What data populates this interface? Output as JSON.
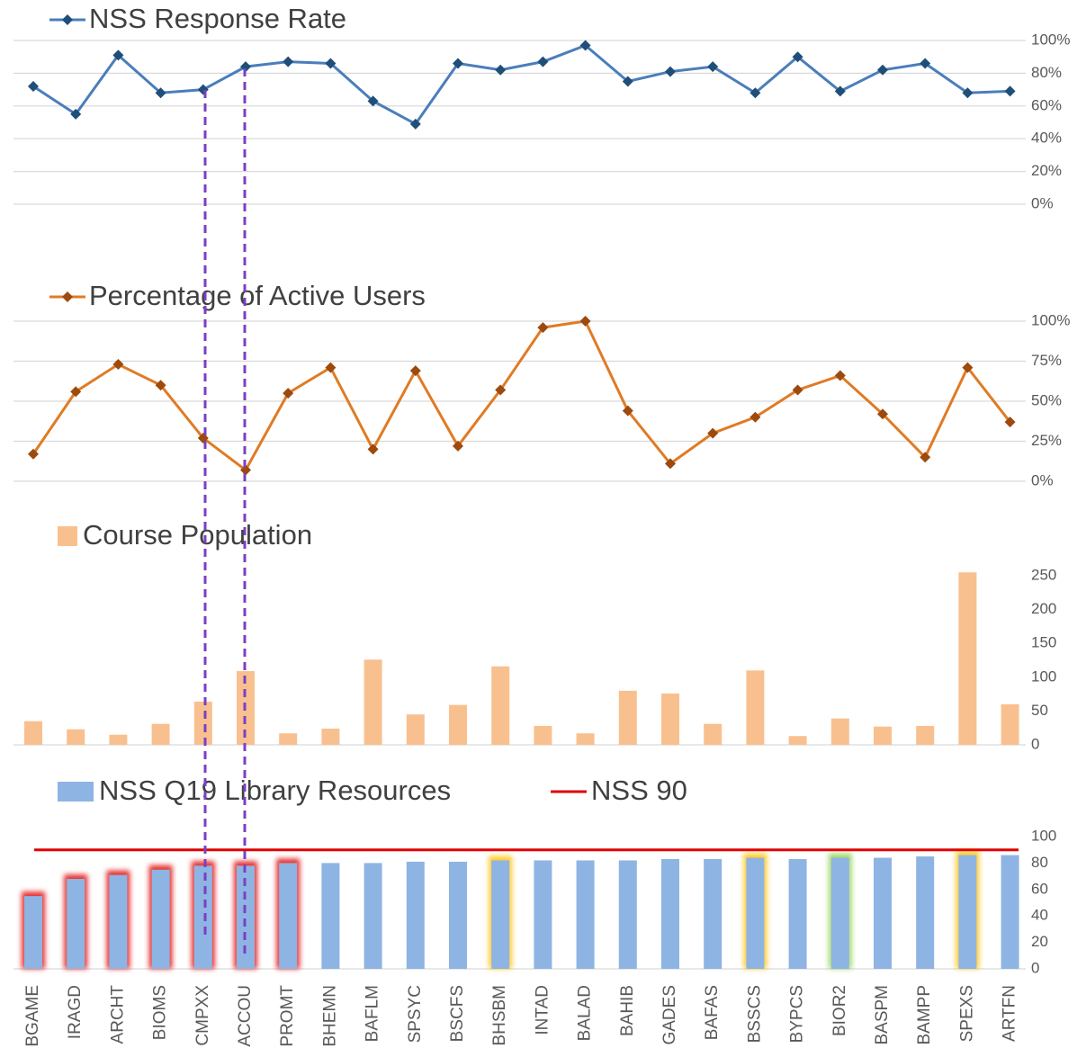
{
  "chart_data": [
    {
      "type": "line",
      "series": [
        {
          "name": "NSS Response Rate",
          "color": "#4a7ebb",
          "marker_color": "#1f4e79",
          "values": [
            72,
            55,
            91,
            68,
            70,
            84,
            87,
            86,
            63,
            49,
            86,
            82,
            87,
            97,
            75,
            81,
            84,
            68,
            90,
            69,
            82,
            86,
            68,
            69
          ]
        }
      ],
      "ylim": [
        0,
        100
      ],
      "yticks": [
        {
          "value": 0,
          "label": "0%"
        },
        {
          "value": 20,
          "label": "20%"
        },
        {
          "value": 40,
          "label": "40%"
        },
        {
          "value": 60,
          "label": "60%"
        },
        {
          "value": 80,
          "label": "80%"
        },
        {
          "value": 100,
          "label": "100%"
        }
      ],
      "grid": true
    },
    {
      "type": "line",
      "series": [
        {
          "name": "Percentage of Active Users",
          "color": "#e07b24",
          "marker_color": "#9c4a0e",
          "values": [
            17,
            56,
            73,
            60,
            27,
            7,
            55,
            71,
            20,
            69,
            22,
            57,
            96,
            100,
            44,
            11,
            30,
            40,
            57,
            66,
            42,
            15,
            71,
            37
          ]
        }
      ],
      "ylim": [
        0,
        100
      ],
      "yticks": [
        {
          "value": 0,
          "label": "0%"
        },
        {
          "value": 25,
          "label": "25%"
        },
        {
          "value": 50,
          "label": "50%"
        },
        {
          "value": 75,
          "label": "75%"
        },
        {
          "value": 100,
          "label": "100%"
        }
      ],
      "grid": true
    },
    {
      "type": "bar",
      "series": [
        {
          "name": "Course Population",
          "color": "#f9c08f",
          "values": [
            35,
            23,
            15,
            31,
            64,
            109,
            17,
            24,
            126,
            45,
            59,
            116,
            28,
            17,
            80,
            76,
            31,
            110,
            13,
            39,
            27,
            28,
            255,
            60
          ]
        }
      ],
      "ylim": [
        0,
        260
      ],
      "yticks": [
        0,
        50,
        100,
        150,
        200,
        250
      ],
      "grid": false
    },
    {
      "type": "bar",
      "categories": [
        "BGAME",
        "IRAGD",
        "ARCHT",
        "BIOMS",
        "CMPXX",
        "ACCOU",
        "PROMT",
        "BHEMN",
        "BAFLM",
        "SPSYC",
        "BSCFS",
        "BHSBM",
        "INTAD",
        "BALAD",
        "BAHIB",
        "GADES",
        "BAFAS",
        "BSSCS",
        "BYPCS",
        "BIOR2",
        "BASPM",
        "BAMPP",
        "SPEXS",
        "ARTFN"
      ],
      "series": [
        {
          "name": "NSS Q19 Library Resources",
          "color": "#8eb4e3",
          "values": [
            55,
            68,
            71,
            75,
            78,
            78,
            80,
            80,
            80,
            81,
            81,
            82,
            82,
            82,
            82,
            83,
            83,
            84,
            83,
            84,
            84,
            85,
            86,
            86
          ],
          "glow": [
            "#e00000",
            "#e00000",
            "#e00000",
            "#e00000",
            "#e00000",
            "#e00000",
            "#e00000",
            null,
            null,
            null,
            null,
            "#ffc000",
            null,
            null,
            null,
            null,
            null,
            "#ffc000",
            null,
            "#92d050",
            null,
            null,
            "#ffc000",
            null
          ]
        },
        {
          "name": "NSS 90",
          "color": "#e00000",
          "value": 90
        }
      ],
      "ylim": [
        0,
        100
      ],
      "yticks": [
        0,
        20,
        40,
        60,
        80,
        100
      ],
      "grid": false
    }
  ]
}
